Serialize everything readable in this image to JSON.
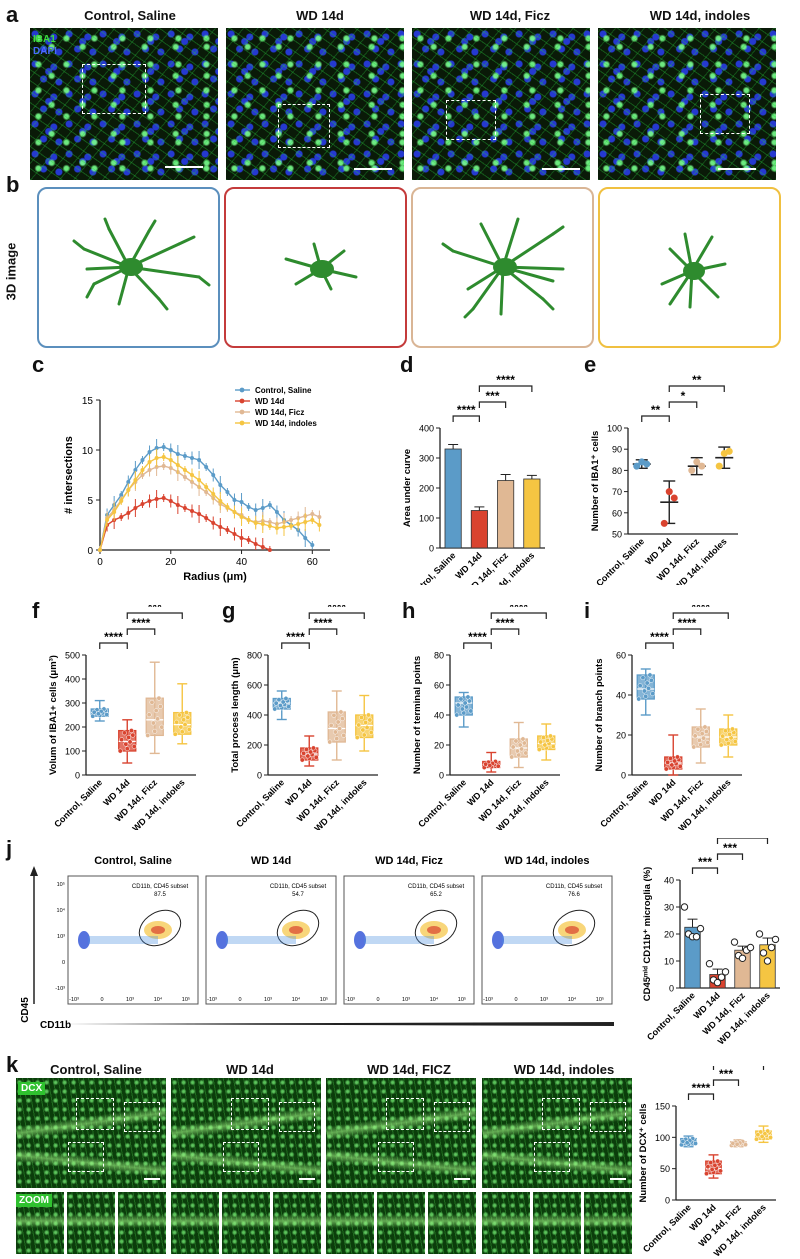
{
  "panel_labels": {
    "a": "a",
    "b": "b",
    "c": "c",
    "d": "d",
    "e": "e",
    "f": "f",
    "g": "g",
    "h": "h",
    "i": "i",
    "j": "j",
    "k": "k"
  },
  "groups": [
    "Control, Saline",
    "WD 14d",
    "WD 14d, Ficz",
    "WD 14d, indoles"
  ],
  "groups_k": [
    "Control, Saline",
    "WD 14d",
    "WD 14d, FICZ",
    "WD 14d, indoles"
  ],
  "colors": {
    "control": "#5b9bc8",
    "wd": "#d9432f",
    "ficz": "#e0b894",
    "indoles": "#f5c542"
  },
  "panel_a": {
    "stain1": "IBA1",
    "stain2": "DAPI"
  },
  "panel_b": {
    "ylabel": "3D image"
  },
  "panel_j": {
    "xaxis": "CD11b",
    "yaxis": "CD45",
    "gate_label": "CD11b, CD45 subset",
    "gate_values": [
      "87.5",
      "54.7",
      "65.2",
      "76.6"
    ],
    "ticks_x": [
      "-10³",
      "0",
      "10³",
      "10⁴",
      "10⁵"
    ],
    "ticks_y": [
      "10⁵",
      "10⁴",
      "10³",
      "0",
      "-10³"
    ]
  },
  "panel_k": {
    "stain": "DCX",
    "zoom": "ZOOM"
  },
  "chart_data": [
    {
      "id": "c",
      "type": "line",
      "xlabel": "Radius (μm)",
      "ylabel": "# intersections",
      "xlim": [
        0,
        65
      ],
      "ylim": [
        0,
        15
      ],
      "xticks": [
        "0",
        "20",
        "40",
        "60"
      ],
      "yticks": [
        "0",
        "5",
        "10",
        "15"
      ],
      "series": [
        {
          "name": "Control, Saline",
          "color": "#5b9bc8",
          "x": [
            0,
            2,
            4,
            6,
            8,
            10,
            12,
            14,
            16,
            18,
            20,
            22,
            24,
            26,
            28,
            30,
            32,
            34,
            36,
            38,
            40,
            42,
            44,
            46,
            48,
            50,
            52,
            54,
            56,
            58,
            60
          ],
          "y": [
            0,
            3.5,
            4.5,
            5.5,
            6.8,
            8,
            9,
            9.8,
            10.2,
            10.3,
            10,
            9.6,
            9.4,
            9.2,
            9,
            8.3,
            7.5,
            6.5,
            5.8,
            5,
            4.8,
            4.3,
            4,
            4.2,
            4.5,
            3.8,
            3,
            2.5,
            2,
            1.2,
            0.5
          ]
        },
        {
          "name": "WD 14d",
          "color": "#d9432f",
          "x": [
            0,
            2,
            4,
            6,
            8,
            10,
            12,
            14,
            16,
            18,
            20,
            22,
            24,
            26,
            28,
            30,
            32,
            34,
            36,
            38,
            40,
            42,
            44,
            46,
            48
          ],
          "y": [
            0,
            2.5,
            3,
            3.3,
            3.7,
            4.2,
            4.6,
            4.9,
            5.1,
            5.2,
            4.9,
            4.5,
            4.2,
            3.9,
            3.6,
            3.2,
            2.7,
            2.3,
            2,
            1.6,
            1.2,
            1,
            0.6,
            0.3,
            0
          ]
        },
        {
          "name": "WD 14d,  Ficz",
          "color": "#e0b894",
          "x": [
            0,
            2,
            4,
            6,
            8,
            10,
            12,
            14,
            16,
            18,
            20,
            22,
            24,
            26,
            28,
            30,
            32,
            34,
            36,
            38,
            40,
            42,
            44,
            46,
            48,
            50,
            52,
            54,
            56,
            58,
            60,
            62
          ],
          "y": [
            0,
            3.2,
            4,
            5,
            6,
            6.8,
            7.5,
            8,
            8.3,
            8.4,
            8.2,
            7.8,
            7.3,
            6.8,
            6.3,
            5.8,
            5.2,
            4.6,
            4.2,
            3.8,
            3.5,
            3,
            2.8,
            2.9,
            2.8,
            2.6,
            2.8,
            3,
            3.2,
            3.4,
            3.6,
            3.3
          ]
        },
        {
          "name": "WD 14d,  indoles",
          "color": "#f5c542",
          "x": [
            0,
            2,
            4,
            6,
            8,
            10,
            12,
            14,
            16,
            18,
            20,
            22,
            24,
            26,
            28,
            30,
            32,
            34,
            36,
            38,
            40,
            42,
            44,
            46,
            48,
            50,
            52,
            54,
            56,
            58,
            60,
            62
          ],
          "y": [
            0,
            3,
            3.8,
            4.9,
            6,
            7,
            8,
            8.8,
            9.2,
            9.3,
            9,
            8.5,
            8,
            7.5,
            7,
            6.3,
            5.6,
            4.9,
            4.3,
            3.8,
            3.3,
            3,
            2.7,
            2.6,
            2.4,
            2.2,
            2.3,
            2.4,
            2.6,
            2.8,
            3,
            2.5
          ]
        }
      ]
    },
    {
      "id": "d",
      "type": "bar",
      "ylabel": "Area  under curve",
      "ylim": [
        0,
        400
      ],
      "yticks": [
        "0",
        "100",
        "200",
        "300",
        "400"
      ],
      "categories": [
        "Control, Saline",
        "WD 14d",
        "WD 14d, Ficz",
        "WD 14d, indoles"
      ],
      "values": [
        330,
        125,
        225,
        230
      ],
      "errors": [
        15,
        12,
        20,
        12
      ],
      "sig": [
        {
          "a": 0,
          "b": 1,
          "label": "****"
        },
        {
          "a": 1,
          "b": 2,
          "label": "***"
        },
        {
          "a": 1,
          "b": 3,
          "label": "****"
        }
      ]
    },
    {
      "id": "e",
      "type": "scatter",
      "ylabel": "Number of IBA1⁺ cells",
      "ylim": [
        50,
        100
      ],
      "yticks": [
        "50",
        "60",
        "70",
        "80",
        "90",
        "100"
      ],
      "categories": [
        "Control, Saline",
        "WD 14d",
        "WD 14d, Ficz",
        "WD 14d, indoles"
      ],
      "means": [
        83,
        65,
        82,
        86
      ],
      "errors": [
        2,
        10,
        4,
        5
      ],
      "points": [
        [
          82,
          84,
          83
        ],
        [
          55,
          70,
          67
        ],
        [
          80,
          84,
          82
        ],
        [
          82,
          88,
          89
        ]
      ],
      "sig": [
        {
          "a": 0,
          "b": 1,
          "label": "**"
        },
        {
          "a": 1,
          "b": 2,
          "label": "*"
        },
        {
          "a": 1,
          "b": 3,
          "label": "**"
        }
      ]
    },
    {
      "id": "f",
      "type": "box",
      "ylabel": "Volum of IBA1+ cells (μm³)",
      "ylim": [
        0,
        500
      ],
      "yticks": [
        "0",
        "100",
        "200",
        "300",
        "400",
        "500"
      ],
      "categories": [
        "Control, Saline",
        "WD 14d",
        "WD 14d, Ficz",
        "WD 14d, indoles"
      ],
      "boxes": [
        [
          225,
          245,
          260,
          275,
          310
        ],
        [
          50,
          100,
          140,
          185,
          230
        ],
        [
          90,
          165,
          230,
          320,
          470
        ],
        [
          130,
          170,
          210,
          260,
          380
        ]
      ],
      "sig": [
        {
          "a": 0,
          "b": 1,
          "label": "****"
        },
        {
          "a": 1,
          "b": 2,
          "label": "****"
        },
        {
          "a": 1,
          "b": 3,
          "label": "***"
        }
      ]
    },
    {
      "id": "g",
      "type": "box",
      "ylabel": "Total process length (μm)",
      "ylim": [
        0,
        800
      ],
      "yticks": [
        "0",
        "200",
        "400",
        "600",
        "800"
      ],
      "categories": [
        "Control, Saline",
        "WD 14d",
        "WD 14d, Ficz",
        "WD 14d, indoles"
      ],
      "boxes": [
        [
          370,
          440,
          480,
          510,
          560
        ],
        [
          60,
          100,
          140,
          180,
          260
        ],
        [
          100,
          220,
          310,
          420,
          560
        ],
        [
          160,
          250,
          330,
          400,
          530
        ]
      ],
      "sig": [
        {
          "a": 0,
          "b": 1,
          "label": "****"
        },
        {
          "a": 1,
          "b": 2,
          "label": "****"
        },
        {
          "a": 1,
          "b": 3,
          "label": "****"
        }
      ]
    },
    {
      "id": "h",
      "type": "box",
      "ylabel": "Number of terminal points",
      "ylim": [
        0,
        80
      ],
      "yticks": [
        "0",
        "20",
        "40",
        "60",
        "80"
      ],
      "categories": [
        "Control, Saline",
        "WD 14d",
        "WD 14d, Ficz",
        "WD 14d, indoles"
      ],
      "boxes": [
        [
          32,
          40,
          48,
          52,
          55
        ],
        [
          2,
          5,
          7,
          9,
          15
        ],
        [
          5,
          12,
          18,
          24,
          35
        ],
        [
          10,
          17,
          21,
          26,
          34
        ]
      ],
      "sig": [
        {
          "a": 0,
          "b": 1,
          "label": "****"
        },
        {
          "a": 1,
          "b": 2,
          "label": "****"
        },
        {
          "a": 1,
          "b": 3,
          "label": "****"
        }
      ]
    },
    {
      "id": "i",
      "type": "box",
      "ylabel": "Number of branch points",
      "ylim": [
        0,
        60
      ],
      "yticks": [
        "0",
        "20",
        "40",
        "60"
      ],
      "categories": [
        "Control, Saline",
        "WD 14d",
        "WD 14d, Ficz",
        "WD 14d, indoles"
      ],
      "boxes": [
        [
          30,
          38,
          43,
          50,
          53
        ],
        [
          0,
          3,
          6,
          9,
          20
        ],
        [
          6,
          14,
          19,
          24,
          33
        ],
        [
          9,
          15,
          19,
          23,
          30
        ]
      ],
      "sig": [
        {
          "a": 0,
          "b": 1,
          "label": "****"
        },
        {
          "a": 1,
          "b": 2,
          "label": "****"
        },
        {
          "a": 1,
          "b": 3,
          "label": "****"
        }
      ]
    },
    {
      "id": "j",
      "type": "bar",
      "ylabel": "CD45ᵐⁱᵈ CD11b⁺ microglia  (%)",
      "ylim": [
        0,
        40
      ],
      "yticks": [
        "0",
        "10",
        "20",
        "30",
        "40"
      ],
      "categories": [
        "Control, Saline",
        "WD 14d",
        "WD 14d, Ficz",
        "WD 14d, indoles"
      ],
      "values": [
        22.5,
        5,
        14,
        16
      ],
      "errors": [
        3,
        2,
        1.5,
        2.5
      ],
      "points": [
        [
          30,
          20,
          19,
          19,
          22
        ],
        [
          9,
          3,
          2,
          4,
          6
        ],
        [
          17,
          12,
          11,
          14,
          15
        ],
        [
          20,
          13,
          10,
          15,
          18
        ]
      ],
      "sig": [
        {
          "a": 0,
          "b": 1,
          "label": "***"
        },
        {
          "a": 1,
          "b": 2,
          "label": "***"
        },
        {
          "a": 1,
          "b": 3,
          "label": "***"
        }
      ]
    },
    {
      "id": "k",
      "type": "box",
      "ylabel": "Number of DCX⁺ cells",
      "ylim": [
        0,
        150
      ],
      "yticks": [
        "0",
        "50",
        "100",
        "150"
      ],
      "categories": [
        "Control, Saline",
        "WD 14d",
        "WD 14d, Ficz",
        "WD 14d, indoles"
      ],
      "boxes": [
        [
          85,
          88,
          92,
          98,
          102
        ],
        [
          35,
          42,
          50,
          62,
          72
        ],
        [
          85,
          87,
          90,
          93,
          96
        ],
        [
          92,
          97,
          103,
          110,
          118
        ]
      ],
      "sig": [
        {
          "a": 0,
          "b": 1,
          "label": "****"
        },
        {
          "a": 1,
          "b": 2,
          "label": "***"
        },
        {
          "a": 1,
          "b": 3,
          "label": "****"
        }
      ]
    }
  ]
}
